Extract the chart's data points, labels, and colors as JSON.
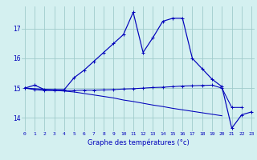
{
  "xlabel": "Graphe des températures (°c)",
  "background_color": "#d4f0f0",
  "grid_color": "#a0cccc",
  "line_color": "#0000bb",
  "hours": [
    0,
    1,
    2,
    3,
    4,
    5,
    6,
    7,
    8,
    9,
    10,
    11,
    12,
    13,
    14,
    15,
    16,
    17,
    18,
    19,
    20,
    21,
    22,
    23
  ],
  "temp_main": [
    15.0,
    15.1,
    14.95,
    14.95,
    14.95,
    15.35,
    15.6,
    15.9,
    16.2,
    16.5,
    16.8,
    17.55,
    16.2,
    16.7,
    17.25,
    17.35,
    17.35,
    16.0,
    15.65,
    15.3,
    15.05,
    13.65,
    14.1,
    14.2
  ],
  "temp_flat": [
    15.0,
    14.95,
    14.92,
    14.92,
    14.92,
    14.92,
    14.93,
    14.93,
    14.94,
    14.95,
    14.97,
    14.98,
    15.0,
    15.02,
    15.03,
    15.05,
    15.07,
    15.08,
    15.09,
    15.1,
    15.0,
    14.35,
    14.35,
    null
  ],
  "temp_decline": [
    15.0,
    14.98,
    14.96,
    14.93,
    14.9,
    14.87,
    14.82,
    14.77,
    14.72,
    14.67,
    14.6,
    14.55,
    14.49,
    14.43,
    14.38,
    14.32,
    14.27,
    14.22,
    14.17,
    14.12,
    14.07,
    null,
    null,
    null
  ],
  "ylim": [
    13.55,
    17.75
  ],
  "yticks": [
    14,
    15,
    16,
    17
  ],
  "xlim": [
    -0.3,
    23.3
  ]
}
